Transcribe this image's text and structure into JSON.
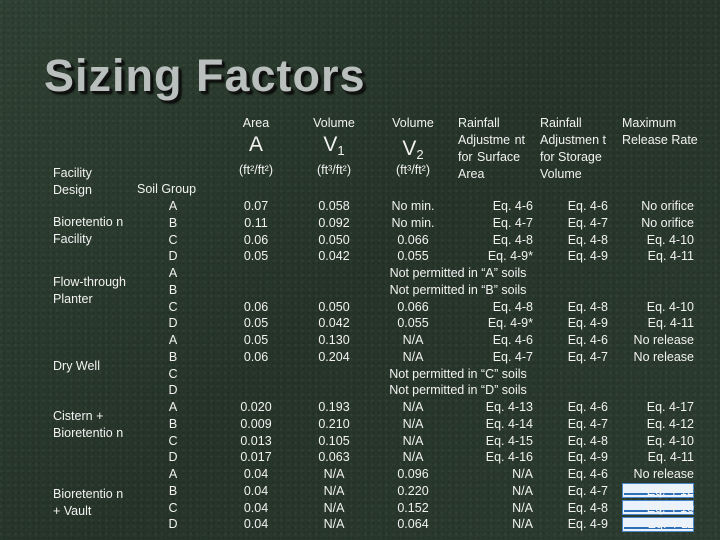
{
  "title": "Sizing Factors",
  "headers": {
    "facility_design": "Facility Design",
    "soil_group": "Soil Group",
    "area": {
      "label": "Area",
      "symbol": "A",
      "units": "(ft²/ft²)"
    },
    "volume1": {
      "label": "Volume",
      "symbol": "V",
      "sub": "1",
      "units": "(ft³/ft²)"
    },
    "volume2": {
      "label": "Volume",
      "symbol": "V",
      "sub": "2",
      "units": "(ft³/ft²)"
    },
    "rainfall_surface": "Rainfall Adjustme nt for Surface Area",
    "rainfall_storage": "Rainfall Adjustmen t for Storage Volume",
    "max_release": "Maximum Release Rate"
  },
  "facilities": [
    "Bioretentio n Facility",
    "Flow-through Planter",
    "Dry Well",
    "Cistern + Bioretentio n",
    "Bioretentio n + Vault"
  ],
  "rows": [
    {
      "soil": "A",
      "area": "0.07",
      "v1": "0.058",
      "v2": "No min.",
      "rsa": "Eq. 4-6",
      "rsv": "Eq. 4-6",
      "mrr": "No orifice"
    },
    {
      "soil": "B",
      "area": "0.11",
      "v1": "0.092",
      "v2": "No min.",
      "rsa": "Eq. 4-7",
      "rsv": "Eq. 4-7",
      "mrr": "No orifice"
    },
    {
      "soil": "C",
      "area": "0.06",
      "v1": "0.050",
      "v2": "0.066",
      "rsa": "Eq. 4-8",
      "rsv": "Eq. 4-8",
      "mrr": "Eq. 4-10"
    },
    {
      "soil": "D",
      "area": "0.05",
      "v1": "0.042",
      "v2": "0.055",
      "rsa": "Eq. 4-9*",
      "rsv": "Eq. 4-9",
      "mrr": "Eq. 4-11"
    },
    {
      "soil": "A",
      "note": "Not permitted in “A” soils"
    },
    {
      "soil": "B",
      "note": "Not permitted in “B” soils"
    },
    {
      "soil": "C",
      "area": "0.06",
      "v1": "0.050",
      "v2": "0.066",
      "rsa": "Eq. 4-8",
      "rsv": "Eq. 4-8",
      "mrr": "Eq. 4-10"
    },
    {
      "soil": "D",
      "area": "0.05",
      "v1": "0.042",
      "v2": "0.055",
      "rsa": "Eq. 4-9*",
      "rsv": "Eq. 4-9",
      "mrr": "Eq. 4-11"
    },
    {
      "soil": "A",
      "area": "0.05",
      "v1": "0.130",
      "v2": "N/A",
      "rsa": "Eq. 4-6",
      "rsv": "Eq. 4-6",
      "mrr": "No release"
    },
    {
      "soil": "B",
      "area": "0.06",
      "v1": "0.204",
      "v2": "N/A",
      "rsa": "Eq. 4-7",
      "rsv": "Eq. 4-7",
      "mrr": "No release"
    },
    {
      "soil": "C",
      "note": "Not permitted in “C” soils"
    },
    {
      "soil": "D",
      "note": "Not permitted in “D” soils"
    },
    {
      "soil": "A",
      "area": "0.020",
      "v1": "0.193",
      "v2": "N/A",
      "rsa": "Eq. 4-13",
      "rsv": "Eq. 4-6",
      "mrr": "Eq. 4-17"
    },
    {
      "soil": "B",
      "area": "0.009",
      "v1": "0.210",
      "v2": "N/A",
      "rsa": "Eq. 4-14",
      "rsv": "Eq. 4-7",
      "mrr": "Eq. 4-12"
    },
    {
      "soil": "C",
      "area": "0.013",
      "v1": "0.105",
      "v2": "N/A",
      "rsa": "Eq. 4-15",
      "rsv": "Eq. 4-8",
      "mrr": "Eq. 4-10"
    },
    {
      "soil": "D",
      "area": "0.017",
      "v1": "0.063",
      "v2": "N/A",
      "rsa": "Eq. 4-16",
      "rsv": "Eq. 4-9",
      "mrr": "Eq. 4-11"
    },
    {
      "soil": "A",
      "area": "0.04",
      "v1": "N/A",
      "v2": "0.096",
      "rsa": "N/A",
      "rsv": "Eq. 4-6",
      "mrr": "No release"
    },
    {
      "soil": "B",
      "area": "0.04",
      "v1": "N/A",
      "v2": "0.220",
      "rsa": "N/A",
      "rsv": "Eq. 4-7",
      "mrr": "Eq. 4-12"
    },
    {
      "soil": "C",
      "area": "0.04",
      "v1": "N/A",
      "v2": "0.152",
      "rsa": "N/A",
      "rsv": "Eq. 4-8",
      "mrr": "Eq. 4-10"
    },
    {
      "soil": "D",
      "area": "0.04",
      "v1": "N/A",
      "v2": "0.064",
      "rsa": "N/A",
      "rsv": "Eq. 4-9",
      "mrr": "Eq. 4-11"
    }
  ],
  "highlight_color": "#4a86c8"
}
